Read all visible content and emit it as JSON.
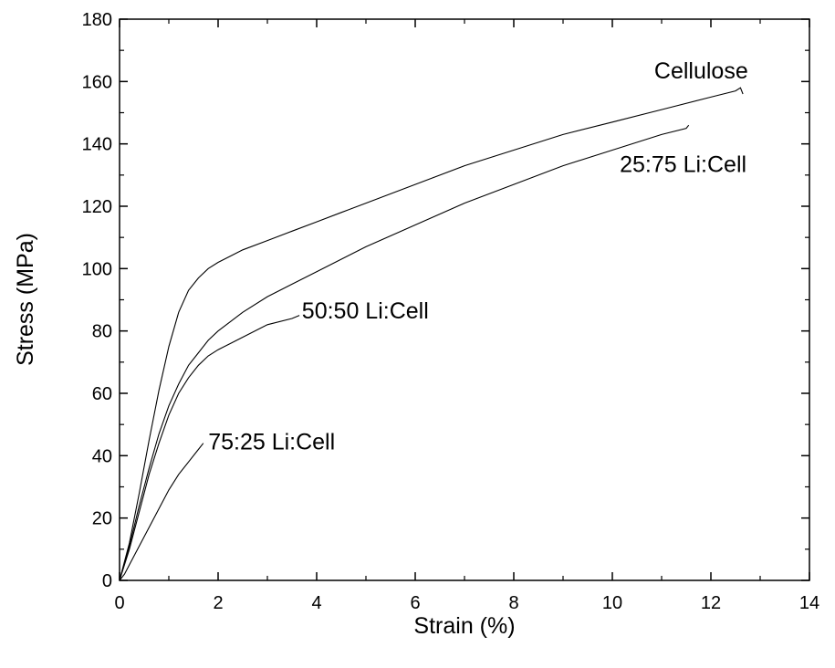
{
  "chart_data": {
    "type": "line",
    "title": "",
    "xlabel": "Strain (%)",
    "ylabel": "Stress (MPa)",
    "xlim": [
      0,
      14
    ],
    "ylim": [
      0,
      180
    ],
    "x_ticks": [
      "0",
      "2",
      "4",
      "6",
      "8",
      "10",
      "12",
      "14"
    ],
    "y_ticks": [
      "0",
      "20",
      "40",
      "60",
      "80",
      "100",
      "120",
      "140",
      "160",
      "180"
    ],
    "grid": false,
    "legend": "none",
    "line_color": "#000000",
    "series": [
      {
        "name": "Cellulose",
        "x": [
          0,
          0.2,
          0.4,
          0.6,
          0.8,
          1.0,
          1.2,
          1.4,
          1.6,
          1.8,
          2.0,
          2.5,
          3.0,
          3.5,
          4.0,
          4.5,
          5.0,
          6.0,
          7.0,
          8.0,
          9.0,
          10.0,
          11.0,
          12.0,
          12.5,
          12.6,
          12.65
        ],
        "y": [
          0,
          12,
          28,
          45,
          61,
          75,
          86,
          93,
          97,
          100,
          102,
          106,
          109,
          112,
          115,
          118,
          121,
          127,
          133,
          138,
          143,
          147,
          151,
          155,
          157,
          158,
          156
        ]
      },
      {
        "name": "25:75 Li:Cell",
        "x": [
          0,
          0.2,
          0.4,
          0.6,
          0.8,
          1.0,
          1.2,
          1.4,
          1.6,
          1.8,
          2.0,
          2.5,
          3.0,
          3.5,
          4.0,
          5.0,
          6.0,
          7.0,
          8.0,
          9.0,
          10.0,
          11.0,
          11.5,
          11.55
        ],
        "y": [
          0,
          11,
          24,
          36,
          47,
          56,
          63,
          69,
          73,
          77,
          80,
          86,
          91,
          95,
          99,
          107,
          114,
          121,
          127,
          133,
          138,
          143,
          145,
          146
        ]
      },
      {
        "name": "50:50 Li:Cell",
        "x": [
          0,
          0.2,
          0.4,
          0.6,
          0.8,
          1.0,
          1.2,
          1.4,
          1.6,
          1.8,
          2.0,
          2.5,
          3.0,
          3.5,
          3.65
        ],
        "y": [
          0,
          10,
          22,
          34,
          44,
          53,
          60,
          65,
          69,
          72,
          74,
          78,
          82,
          84,
          85
        ]
      },
      {
        "name": "75:25 Li:Cell",
        "x": [
          0,
          0.1,
          0.2,
          0.4,
          0.6,
          0.8,
          1.0,
          1.2,
          1.4,
          1.6,
          1.7
        ],
        "y": [
          0,
          2,
          5,
          11,
          17,
          23,
          29,
          34,
          38,
          42,
          44
        ]
      }
    ],
    "annotations": [
      {
        "series": "Cellulose",
        "text": "Cellulose",
        "x": 10.85,
        "y": 161
      },
      {
        "series": "25:75 Li:Cell",
        "text": "25:75 Li:Cell",
        "x": 10.15,
        "y": 131
      },
      {
        "series": "50:50 Li:Cell",
        "text": "50:50 Li:Cell",
        "x": 3.7,
        "y": 84
      },
      {
        "series": "75:25 Li:Cell",
        "text": "75:25 Li:Cell",
        "x": 1.8,
        "y": 42
      }
    ]
  }
}
